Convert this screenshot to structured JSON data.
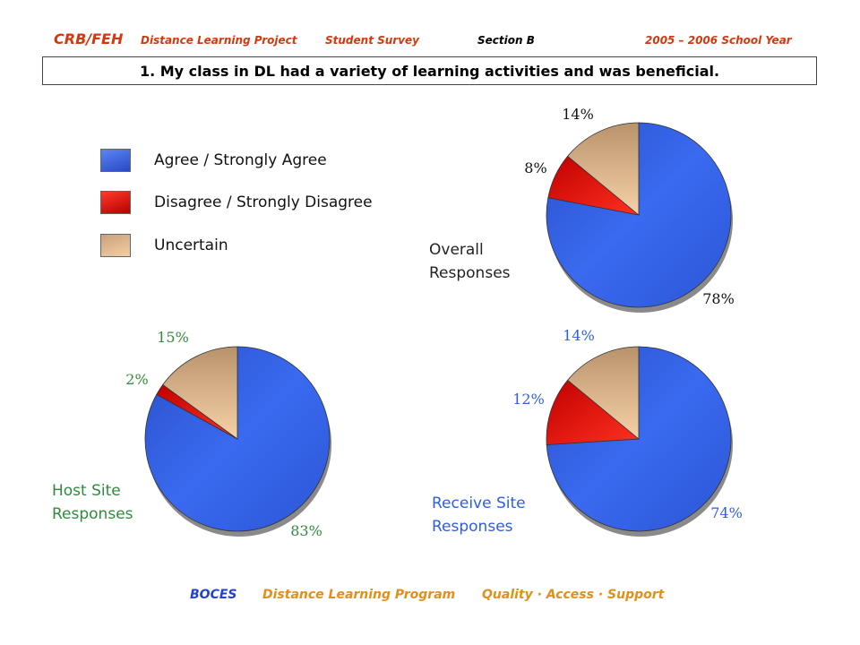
{
  "header": {
    "brand": "CRB/FEH",
    "project": "Distance Learning Project",
    "survey": "Student Survey",
    "section": "Section B",
    "year": "2005 – 2006 School Year"
  },
  "question": "1. My class in DL had a variety of learning activities and was beneficial.",
  "legend": [
    {
      "label": "Agree / Strongly Agree",
      "color": "#2e5ee0"
    },
    {
      "label": "Disagree / Strongly Disagree",
      "color": "#e01010"
    },
    {
      "label": "Uncertain",
      "color": "#deb88c"
    }
  ],
  "colors": {
    "agree": "#2e5ee0",
    "disagree": "#e01010",
    "uncertain": "#deb88c",
    "brand": "#d4380d",
    "host_label": "#2e8b3a",
    "receive_label": "#2e5ee0",
    "footer_blue": "#2244cc",
    "footer_orange": "#e0901a"
  },
  "chart_data": [
    {
      "type": "pie",
      "name": "overall",
      "title_lines": [
        "Overall",
        "Responses"
      ],
      "categories": [
        "Agree / Strongly Agree",
        "Disagree / Strongly Disagree",
        "Uncertain"
      ],
      "values": [
        78,
        8,
        14
      ],
      "labels": [
        "78%",
        "8%",
        "14%"
      ]
    },
    {
      "type": "pie",
      "name": "host",
      "title_lines": [
        "Host Site",
        "Responses"
      ],
      "categories": [
        "Agree / Strongly Agree",
        "Disagree / Strongly Disagree",
        "Uncertain"
      ],
      "values": [
        83,
        2,
        15
      ],
      "labels": [
        "83%",
        "2%",
        "15%"
      ]
    },
    {
      "type": "pie",
      "name": "receive",
      "title_lines": [
        "Receive Site",
        "Responses"
      ],
      "categories": [
        "Agree / Strongly Agree",
        "Disagree / Strongly Disagree",
        "Uncertain"
      ],
      "values": [
        74,
        12,
        14
      ],
      "labels": [
        "74%",
        "12%",
        "14%"
      ]
    }
  ],
  "footer": {
    "org": "BOCES",
    "program": "Distance Learning Program",
    "motto": "Quality · Access · Support"
  }
}
